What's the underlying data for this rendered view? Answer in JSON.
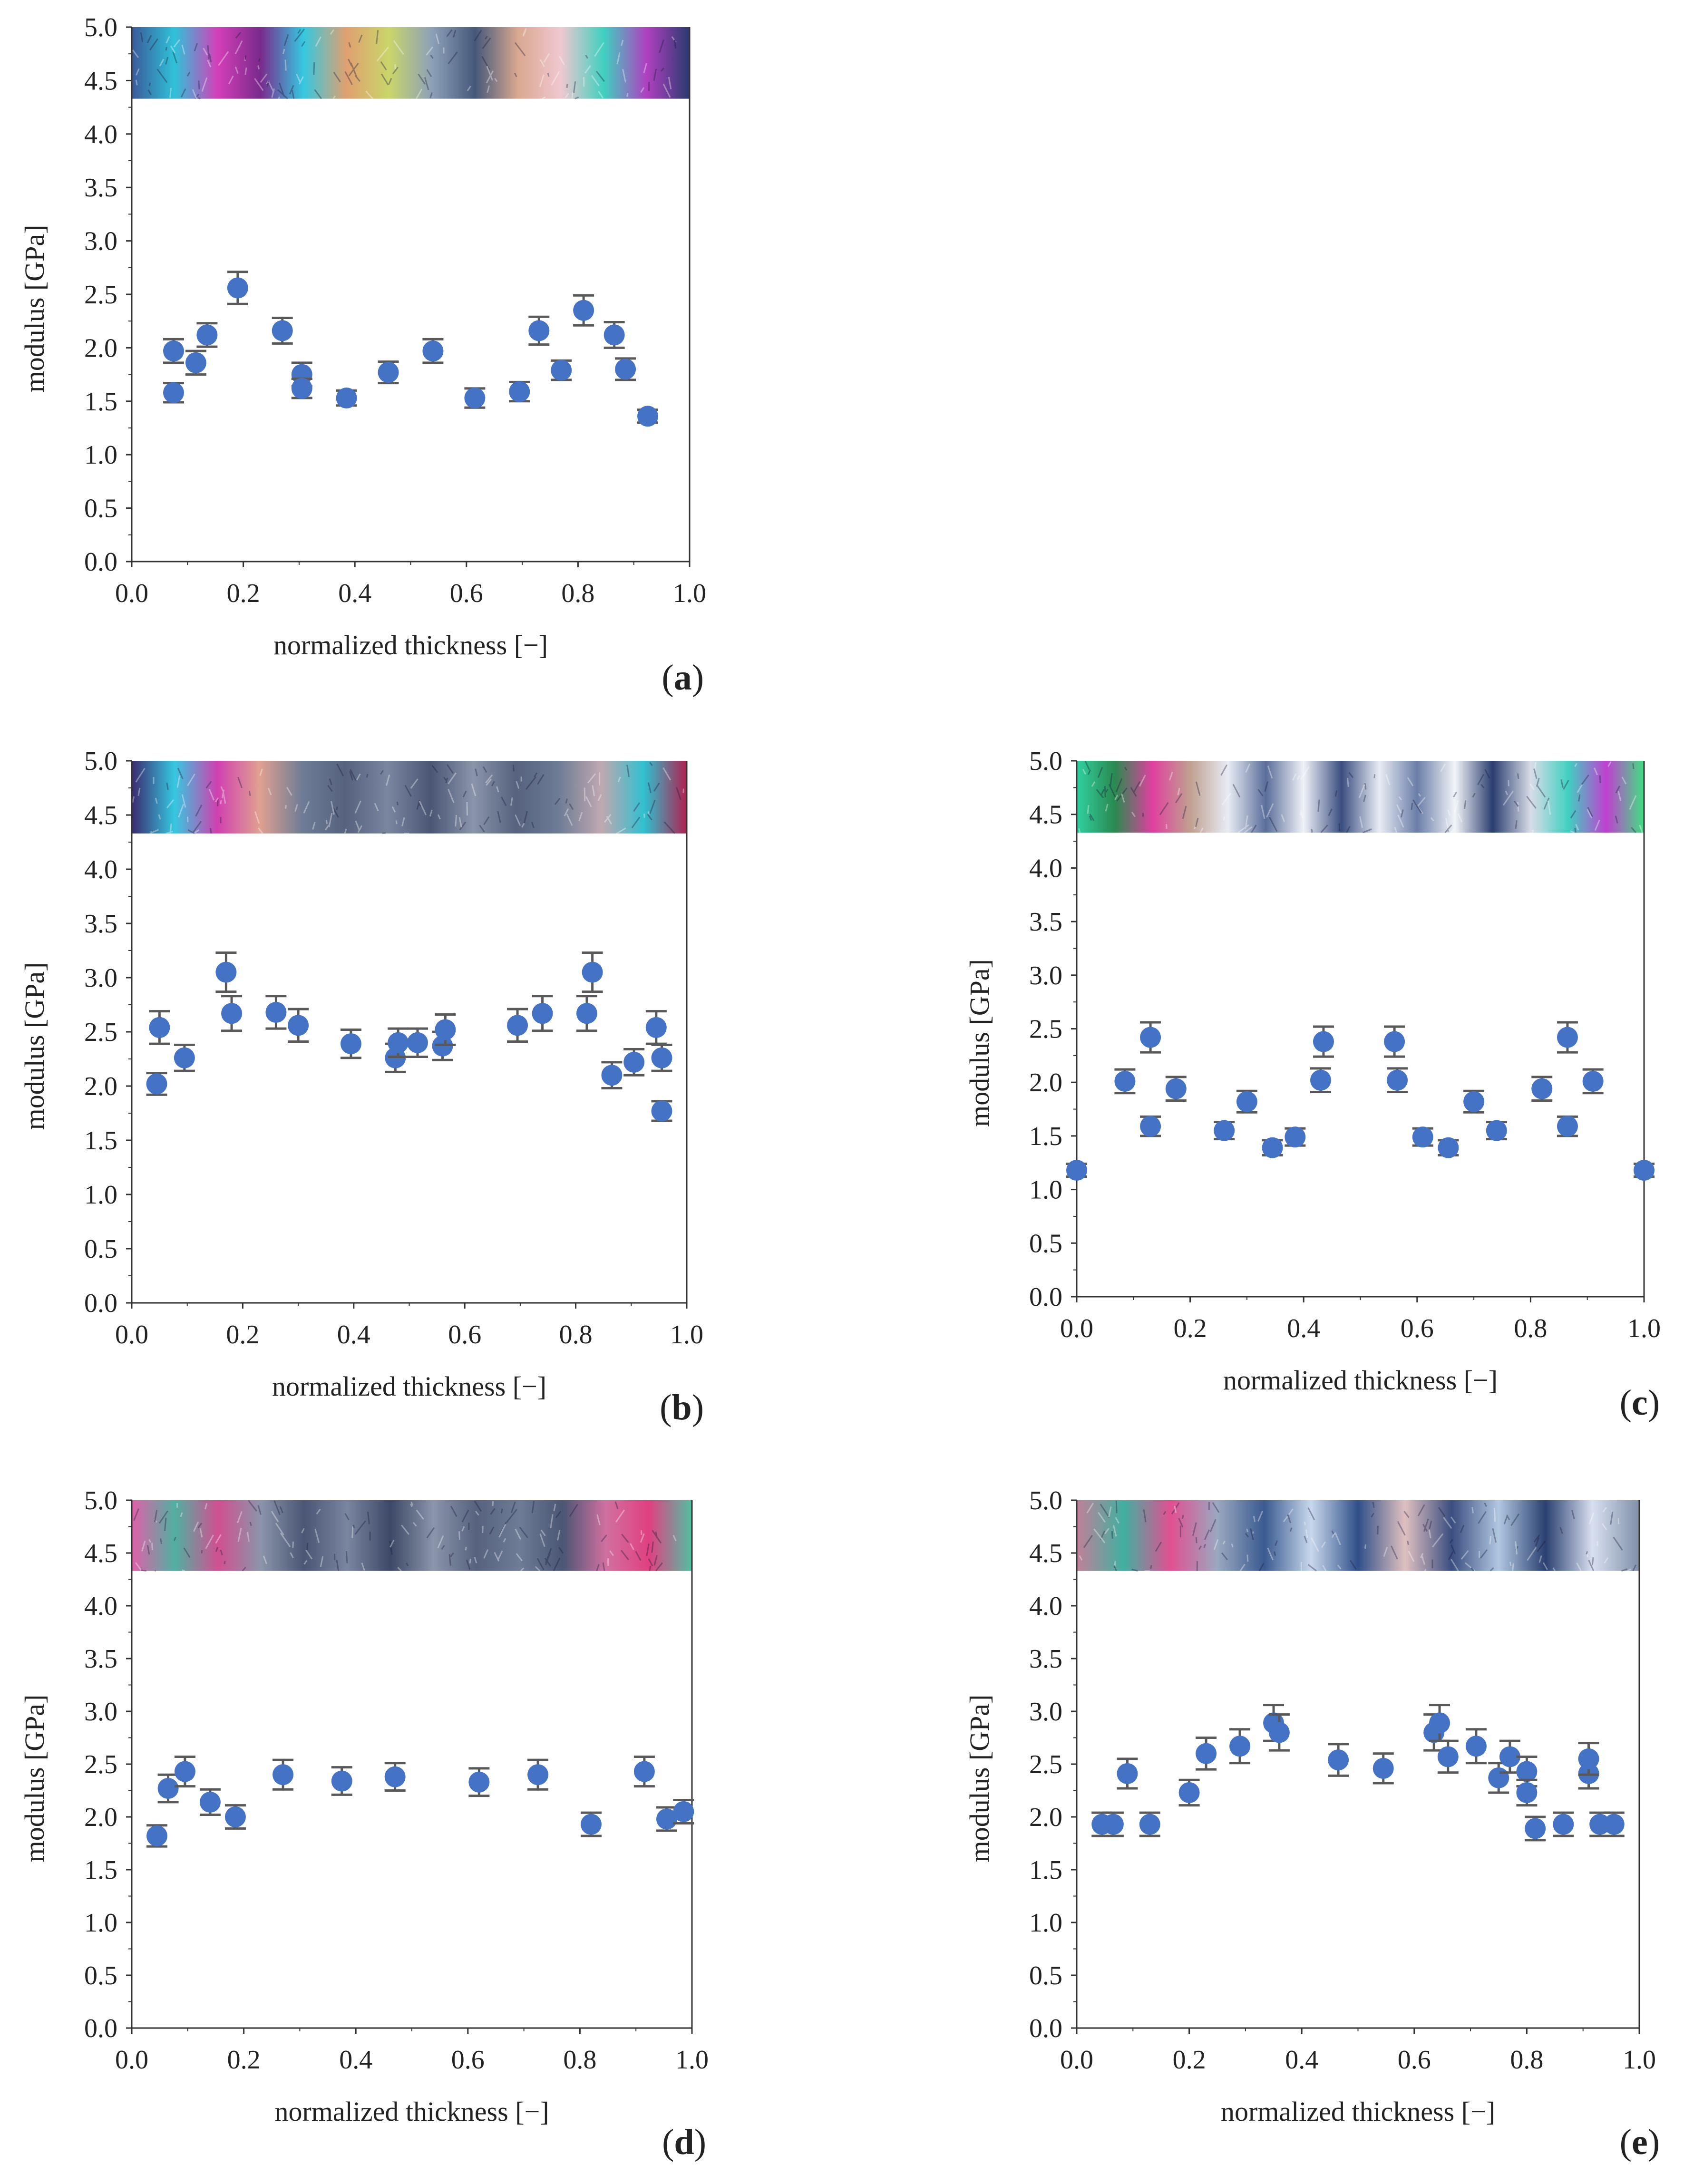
{
  "figure": {
    "y_axis_label": "modulus [GPa]",
    "x_axis_label": "normalized thickness [−]",
    "marker_color": "#4472C4",
    "error_bar_color": "#595959"
  },
  "chart_data": [
    {
      "id": "a",
      "label": "a",
      "type": "scatter",
      "xlabel": "normalized thickness [−]",
      "ylabel": "modulus [GPa]",
      "xlim": [
        0,
        1
      ],
      "ylim": [
        0,
        5
      ],
      "xticks": [
        "0.0",
        "0.2",
        "0.4",
        "0.6",
        "0.8",
        "1.0"
      ],
      "yticks": [
        "0.0",
        "0.5",
        "1.0",
        "1.5",
        "2.0",
        "2.5",
        "3.0",
        "3.5",
        "4.0",
        "4.5",
        "5.0"
      ],
      "micrograph_colors": [
        "#3b5a9a",
        "#2fc2d8",
        "#d43fb8",
        "#7a2a8c",
        "#35c8e0",
        "#e0a070",
        "#c9d66a",
        "#8ca0b8",
        "#46587a",
        "#d9a890",
        "#f0c8d0",
        "#3fd0c0",
        "#b040c0",
        "#2a3a70"
      ],
      "points": [
        {
          "x": 0.075,
          "y": 1.97,
          "err": 0.11
        },
        {
          "x": 0.075,
          "y": 1.58,
          "err": 0.09
        },
        {
          "x": 0.115,
          "y": 1.86,
          "err": 0.11
        },
        {
          "x": 0.135,
          "y": 2.12,
          "err": 0.11
        },
        {
          "x": 0.19,
          "y": 2.56,
          "err": 0.15
        },
        {
          "x": 0.27,
          "y": 2.16,
          "err": 0.12
        },
        {
          "x": 0.305,
          "y": 1.75,
          "err": 0.11
        },
        {
          "x": 0.305,
          "y": 1.62,
          "err": 0.09
        },
        {
          "x": 0.385,
          "y": 1.53,
          "err": 0.07
        },
        {
          "x": 0.46,
          "y": 1.77,
          "err": 0.1
        },
        {
          "x": 0.54,
          "y": 1.97,
          "err": 0.11
        },
        {
          "x": 0.615,
          "y": 1.53,
          "err": 0.09
        },
        {
          "x": 0.695,
          "y": 1.59,
          "err": 0.09
        },
        {
          "x": 0.73,
          "y": 2.16,
          "err": 0.13
        },
        {
          "x": 0.77,
          "y": 1.79,
          "err": 0.09
        },
        {
          "x": 0.81,
          "y": 2.35,
          "err": 0.14
        },
        {
          "x": 0.865,
          "y": 2.12,
          "err": 0.12
        },
        {
          "x": 0.885,
          "y": 1.8,
          "err": 0.1
        },
        {
          "x": 0.925,
          "y": 1.36,
          "err": 0.06
        }
      ]
    },
    {
      "id": "b",
      "label": "b",
      "type": "scatter",
      "xlabel": "normalized thickness [−]",
      "ylabel": "modulus [GPa]",
      "xlim": [
        0,
        1
      ],
      "ylim": [
        0,
        5
      ],
      "xticks": [
        "0.0",
        "0.2",
        "0.4",
        "0.6",
        "0.8",
        "1.0"
      ],
      "yticks": [
        "0.0",
        "0.5",
        "1.0",
        "1.5",
        "2.0",
        "2.5",
        "3.0",
        "3.5",
        "4.0",
        "4.5",
        "5.0"
      ],
      "micrograph_colors": [
        "#3a2a70",
        "#35c8e0",
        "#d040b0",
        "#e0a090",
        "#6e7c96",
        "#56627e",
        "#7a86a0",
        "#4a5674",
        "#8a94aa",
        "#56627e",
        "#6e7c96",
        "#c0a8b0",
        "#30c0d0",
        "#b02050"
      ],
      "points": [
        {
          "x": 0.045,
          "y": 2.02,
          "err": 0.1
        },
        {
          "x": 0.05,
          "y": 2.54,
          "err": 0.15
        },
        {
          "x": 0.095,
          "y": 2.26,
          "err": 0.12
        },
        {
          "x": 0.17,
          "y": 3.05,
          "err": 0.18
        },
        {
          "x": 0.18,
          "y": 2.67,
          "err": 0.16
        },
        {
          "x": 0.26,
          "y": 2.68,
          "err": 0.15
        },
        {
          "x": 0.3,
          "y": 2.56,
          "err": 0.15
        },
        {
          "x": 0.395,
          "y": 2.39,
          "err": 0.13
        },
        {
          "x": 0.475,
          "y": 2.26,
          "err": 0.13
        },
        {
          "x": 0.48,
          "y": 2.4,
          "err": 0.13
        },
        {
          "x": 0.515,
          "y": 2.4,
          "err": 0.13
        },
        {
          "x": 0.56,
          "y": 2.37,
          "err": 0.13
        },
        {
          "x": 0.565,
          "y": 2.52,
          "err": 0.14
        },
        {
          "x": 0.695,
          "y": 2.56,
          "err": 0.15
        },
        {
          "x": 0.74,
          "y": 2.67,
          "err": 0.16
        },
        {
          "x": 0.82,
          "y": 2.67,
          "err": 0.16
        },
        {
          "x": 0.83,
          "y": 3.05,
          "err": 0.18
        },
        {
          "x": 0.865,
          "y": 2.1,
          "err": 0.12
        },
        {
          "x": 0.905,
          "y": 2.22,
          "err": 0.12
        },
        {
          "x": 0.945,
          "y": 2.54,
          "err": 0.15
        },
        {
          "x": 0.955,
          "y": 2.26,
          "err": 0.12
        },
        {
          "x": 0.955,
          "y": 1.77,
          "err": 0.09
        }
      ]
    },
    {
      "id": "c",
      "label": "c",
      "type": "scatter",
      "xlabel": "normalized thickness [−]",
      "ylabel": "modulus [GPa]",
      "xlim": [
        0,
        1
      ],
      "ylim": [
        0,
        5
      ],
      "xticks": [
        "0.0",
        "0.2",
        "0.4",
        "0.6",
        "0.8",
        "1.0"
      ],
      "yticks": [
        "0.0",
        "0.5",
        "1.0",
        "1.5",
        "2.0",
        "2.5",
        "3.0",
        "3.5",
        "4.0",
        "4.5",
        "5.0"
      ],
      "micrograph_colors": [
        "#30d0a0",
        "#2a8a50",
        "#e040a0",
        "#c0a090",
        "#e8ecf4",
        "#5a6e9a",
        "#f0f2f8",
        "#3a4e80",
        "#e8ecf4",
        "#6a7ea8",
        "#f2f4f8",
        "#2a3e70",
        "#d8dce8",
        "#40d0c0",
        "#c040d0",
        "#40e080"
      ],
      "points": [
        {
          "x": 0.0,
          "y": 1.18,
          "err": 0.06
        },
        {
          "x": 0.085,
          "y": 2.01,
          "err": 0.11
        },
        {
          "x": 0.13,
          "y": 2.42,
          "err": 0.14
        },
        {
          "x": 0.13,
          "y": 1.59,
          "err": 0.09
        },
        {
          "x": 0.175,
          "y": 1.94,
          "err": 0.11
        },
        {
          "x": 0.26,
          "y": 1.55,
          "err": 0.08
        },
        {
          "x": 0.3,
          "y": 1.82,
          "err": 0.1
        },
        {
          "x": 0.345,
          "y": 1.39,
          "err": 0.07
        },
        {
          "x": 0.385,
          "y": 1.49,
          "err": 0.08
        },
        {
          "x": 0.43,
          "y": 2.02,
          "err": 0.11
        },
        {
          "x": 0.435,
          "y": 2.38,
          "err": 0.14
        },
        {
          "x": 0.56,
          "y": 2.38,
          "err": 0.14
        },
        {
          "x": 0.565,
          "y": 2.02,
          "err": 0.11
        },
        {
          "x": 0.61,
          "y": 1.49,
          "err": 0.08
        },
        {
          "x": 0.655,
          "y": 1.39,
          "err": 0.07
        },
        {
          "x": 0.7,
          "y": 1.82,
          "err": 0.1
        },
        {
          "x": 0.74,
          "y": 1.55,
          "err": 0.08
        },
        {
          "x": 0.82,
          "y": 1.94,
          "err": 0.11
        },
        {
          "x": 0.865,
          "y": 2.42,
          "err": 0.14
        },
        {
          "x": 0.865,
          "y": 1.59,
          "err": 0.09
        },
        {
          "x": 0.91,
          "y": 2.01,
          "err": 0.11
        },
        {
          "x": 1.0,
          "y": 1.18,
          "err": 0.06
        }
      ]
    },
    {
      "id": "d",
      "label": "d",
      "type": "scatter",
      "xlabel": "normalized thickness [−]",
      "ylabel": "modulus [GPa]",
      "xlim": [
        0,
        1
      ],
      "ylim": [
        0,
        5
      ],
      "xticks": [
        "0.0",
        "0.2",
        "0.4",
        "0.6",
        "0.8",
        "1.0"
      ],
      "yticks": [
        "0.0",
        "0.5",
        "1.0",
        "1.5",
        "2.0",
        "2.5",
        "3.0",
        "3.5",
        "4.0",
        "4.5",
        "5.0"
      ],
      "micrograph_colors": [
        "#e060a8",
        "#50b0a0",
        "#d05090",
        "#8a94aa",
        "#4a5674",
        "#7a86a0",
        "#3c4866",
        "#8a94aa",
        "#56627e",
        "#6e7c96",
        "#4a5674",
        "#d070a0",
        "#e04080",
        "#50c0a0"
      ],
      "points": [
        {
          "x": 0.045,
          "y": 1.82,
          "err": 0.1
        },
        {
          "x": 0.065,
          "y": 2.27,
          "err": 0.13
        },
        {
          "x": 0.095,
          "y": 2.43,
          "err": 0.14
        },
        {
          "x": 0.14,
          "y": 2.14,
          "err": 0.12
        },
        {
          "x": 0.185,
          "y": 2.0,
          "err": 0.11
        },
        {
          "x": 0.27,
          "y": 2.4,
          "err": 0.14
        },
        {
          "x": 0.375,
          "y": 2.34,
          "err": 0.13
        },
        {
          "x": 0.47,
          "y": 2.38,
          "err": 0.13
        },
        {
          "x": 0.62,
          "y": 2.33,
          "err": 0.13
        },
        {
          "x": 0.725,
          "y": 2.4,
          "err": 0.14
        },
        {
          "x": 0.82,
          "y": 1.93,
          "err": 0.11
        },
        {
          "x": 0.915,
          "y": 2.43,
          "err": 0.14
        },
        {
          "x": 0.955,
          "y": 1.98,
          "err": 0.11
        },
        {
          "x": 0.985,
          "y": 2.05,
          "err": 0.11
        }
      ]
    },
    {
      "id": "e",
      "label": "e",
      "type": "scatter",
      "xlabel": "normalized thickness [−]",
      "ylabel": "modulus [GPa]",
      "xlim": [
        0,
        1
      ],
      "ylim": [
        0,
        5
      ],
      "xticks": [
        "0.0",
        "0.2",
        "0.4",
        "0.6",
        "0.8",
        "1.0"
      ],
      "yticks": [
        "0.0",
        "0.5",
        "1.0",
        "1.5",
        "2.0",
        "2.5",
        "3.0",
        "3.5",
        "4.0",
        "4.5",
        "5.0"
      ],
      "micrograph_colors": [
        "#c08098",
        "#40b0a0",
        "#e05090",
        "#9aa8c0",
        "#3a5a90",
        "#c8d8ec",
        "#30508a",
        "#e0c0c0",
        "#3a4e80",
        "#b0c8e0",
        "#2a4070",
        "#d8e0f0",
        "#8090a8"
      ],
      "points": [
        {
          "x": 0.045,
          "y": 1.93,
          "err": 0.11
        },
        {
          "x": 0.065,
          "y": 1.93,
          "err": 0.11
        },
        {
          "x": 0.09,
          "y": 2.41,
          "err": 0.14
        },
        {
          "x": 0.13,
          "y": 1.93,
          "err": 0.11
        },
        {
          "x": 0.2,
          "y": 2.23,
          "err": 0.12
        },
        {
          "x": 0.23,
          "y": 2.6,
          "err": 0.15
        },
        {
          "x": 0.29,
          "y": 2.67,
          "err": 0.16
        },
        {
          "x": 0.35,
          "y": 2.89,
          "err": 0.17
        },
        {
          "x": 0.36,
          "y": 2.8,
          "err": 0.17
        },
        {
          "x": 0.465,
          "y": 2.54,
          "err": 0.15
        },
        {
          "x": 0.545,
          "y": 2.46,
          "err": 0.14
        },
        {
          "x": 0.635,
          "y": 2.8,
          "err": 0.17
        },
        {
          "x": 0.645,
          "y": 2.89,
          "err": 0.17
        },
        {
          "x": 0.66,
          "y": 2.57,
          "err": 0.15
        },
        {
          "x": 0.71,
          "y": 2.67,
          "err": 0.16
        },
        {
          "x": 0.75,
          "y": 2.37,
          "err": 0.14
        },
        {
          "x": 0.77,
          "y": 2.57,
          "err": 0.15
        },
        {
          "x": 0.8,
          "y": 2.43,
          "err": 0.14
        },
        {
          "x": 0.8,
          "y": 2.23,
          "err": 0.12
        },
        {
          "x": 0.815,
          "y": 1.89,
          "err": 0.11
        },
        {
          "x": 0.865,
          "y": 1.93,
          "err": 0.11
        },
        {
          "x": 0.91,
          "y": 2.41,
          "err": 0.14
        },
        {
          "x": 0.91,
          "y": 2.55,
          "err": 0.15
        },
        {
          "x": 0.93,
          "y": 1.93,
          "err": 0.11
        },
        {
          "x": 0.955,
          "y": 1.93,
          "err": 0.11
        }
      ]
    }
  ]
}
